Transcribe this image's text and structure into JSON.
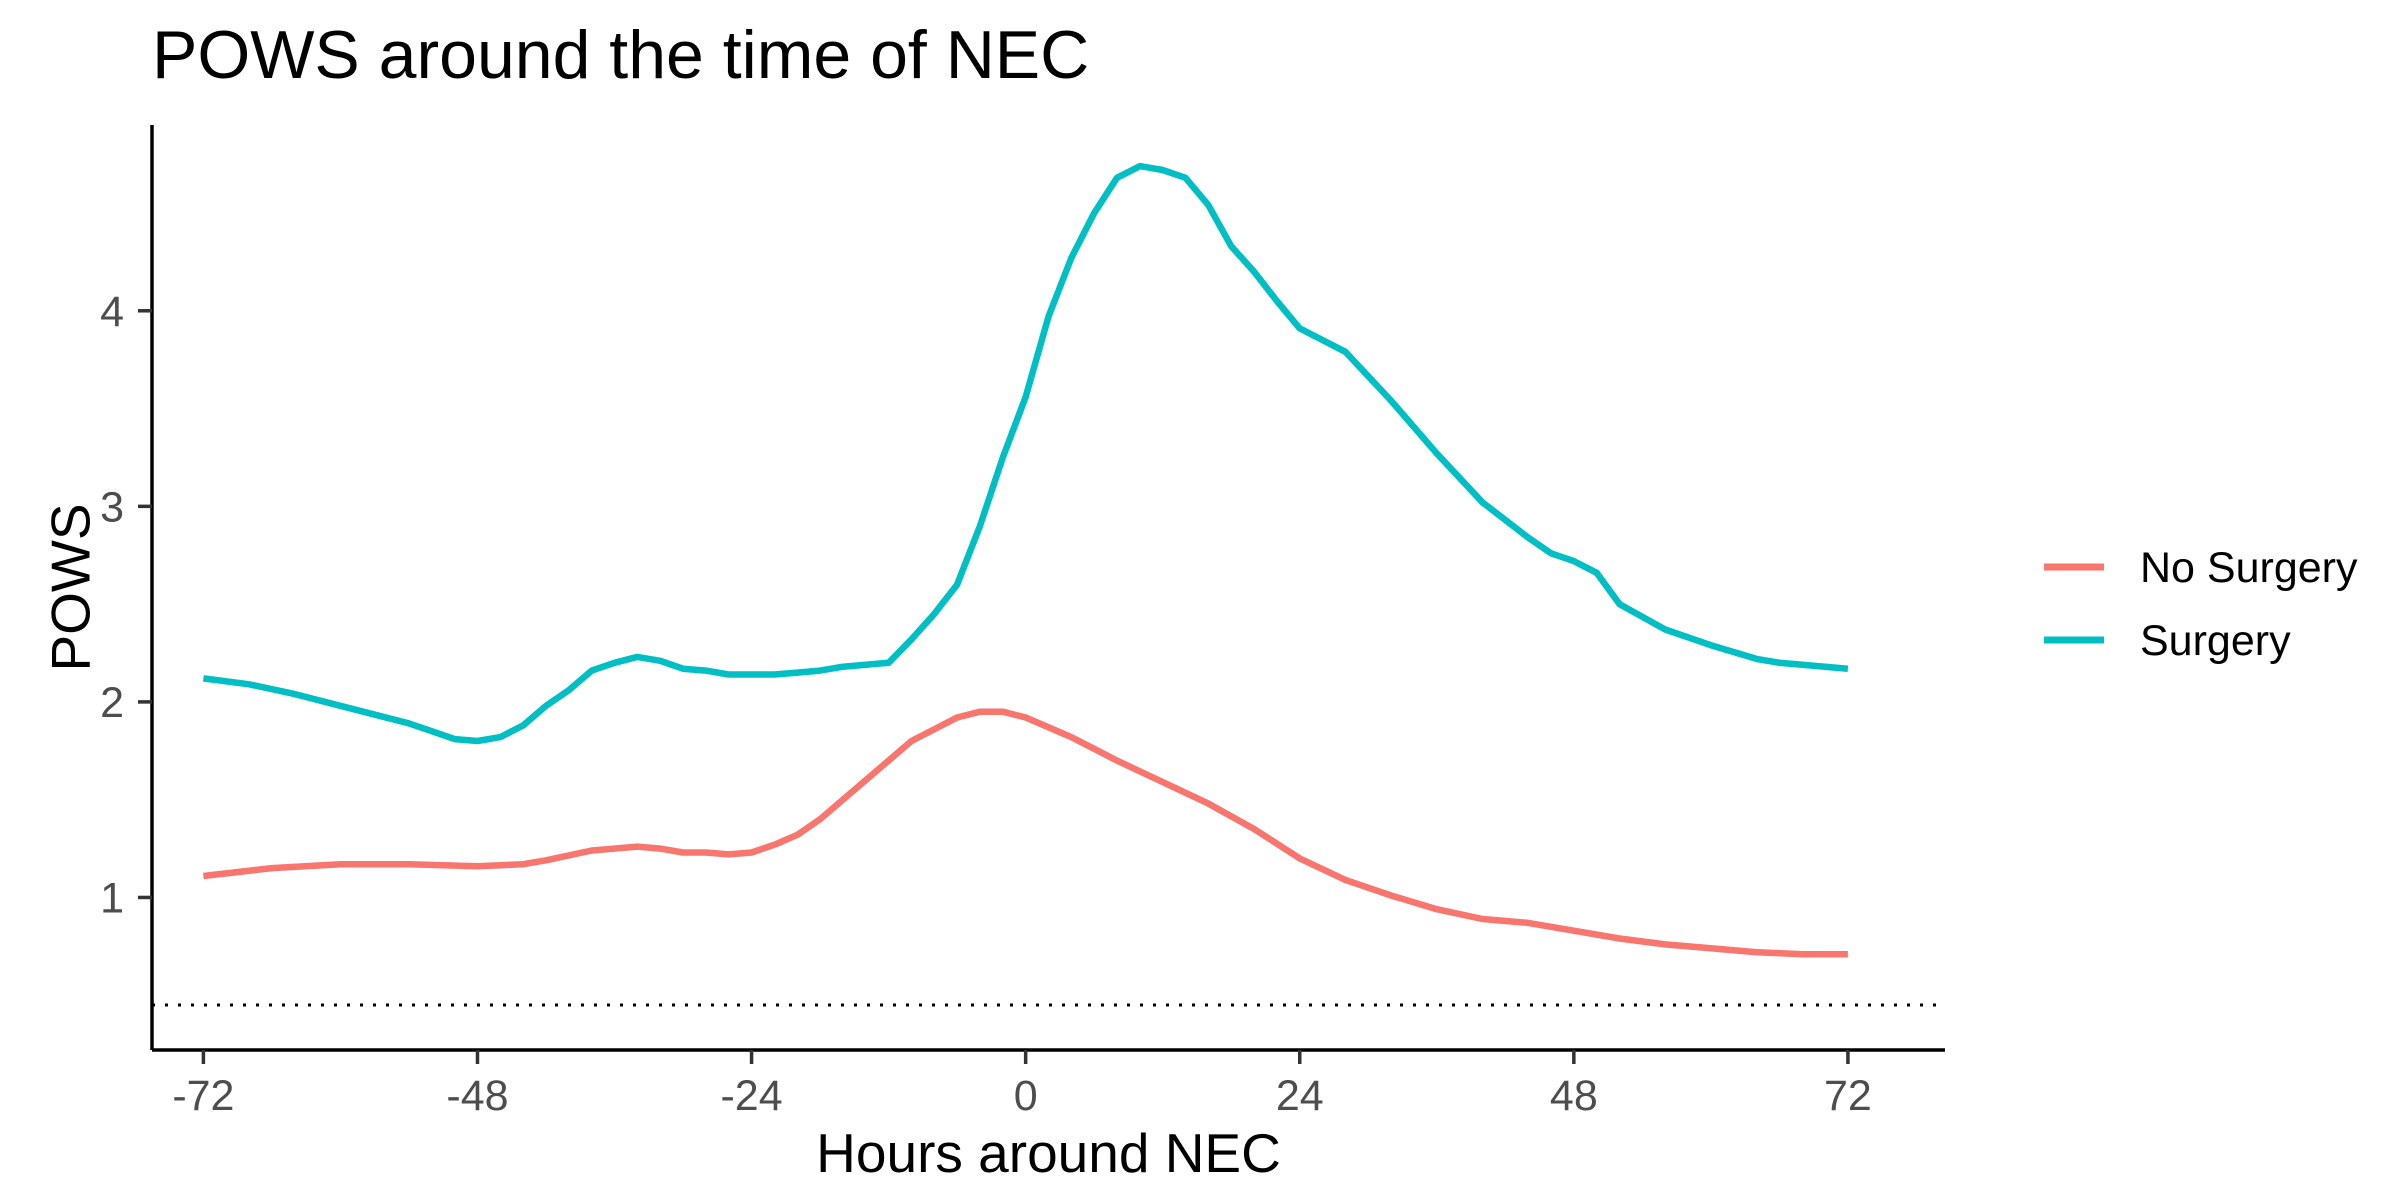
{
  "chart_data": {
    "type": "line",
    "title": "POWS around the time of NEC",
    "xlabel": "Hours around NEC",
    "ylabel": "POWS",
    "xlim": [
      -76.5,
      80.5
    ],
    "ylim": [
      0.22,
      4.95
    ],
    "x_ticks": [
      -72,
      -48,
      -24,
      0,
      24,
      48,
      72
    ],
    "x_tick_labels": [
      "-72",
      "-48",
      "-24",
      "0",
      "24",
      "48",
      "72"
    ],
    "y_ticks": [
      1,
      2,
      3,
      4
    ],
    "y_tick_labels": [
      "1",
      "2",
      "3",
      "4"
    ],
    "grid": false,
    "legend_position": "right",
    "reference_line": {
      "y": 0.45,
      "style": "dotted"
    },
    "series": [
      {
        "name": "No Surgery",
        "color": "#F8766D",
        "x": [
          -72,
          -66,
          -60,
          -54,
          -48,
          -44,
          -42,
          -38,
          -34,
          -32,
          -30,
          -28,
          -26,
          -24,
          -22,
          -20,
          -18,
          -16,
          -12,
          -10,
          -6,
          -4,
          -2,
          0,
          4,
          6,
          8,
          12,
          16,
          20,
          24,
          28,
          32,
          36,
          40,
          44,
          48,
          52,
          56,
          60,
          64,
          68,
          72
        ],
        "y": [
          1.11,
          1.15,
          1.17,
          1.17,
          1.16,
          1.17,
          1.19,
          1.24,
          1.26,
          1.25,
          1.23,
          1.23,
          1.22,
          1.23,
          1.27,
          1.32,
          1.4,
          1.5,
          1.7,
          1.8,
          1.92,
          1.95,
          1.95,
          1.92,
          1.82,
          1.76,
          1.7,
          1.59,
          1.48,
          1.35,
          1.2,
          1.09,
          1.01,
          0.94,
          0.89,
          0.87,
          0.83,
          0.79,
          0.76,
          0.74,
          0.72,
          0.71,
          0.71
        ]
      },
      {
        "name": "Surgery",
        "color": "#00BFC4",
        "x": [
          -72,
          -68,
          -64,
          -58,
          -54,
          -52,
          -50,
          -48,
          -46,
          -44,
          -42,
          -40,
          -38,
          -36,
          -34,
          -32,
          -30,
          -28,
          -26,
          -24,
          -22,
          -20,
          -18,
          -16,
          -12,
          -10,
          -8,
          -6,
          -4,
          -2,
          0,
          2,
          4,
          6,
          8,
          10,
          12,
          14,
          16,
          18,
          20,
          22,
          24,
          26,
          28,
          32,
          36,
          40,
          44,
          46,
          48,
          50,
          52,
          56,
          60,
          64,
          66,
          68,
          70,
          72
        ],
        "y": [
          2.12,
          2.09,
          2.04,
          1.95,
          1.89,
          1.85,
          1.81,
          1.8,
          1.82,
          1.88,
          1.98,
          2.06,
          2.16,
          2.2,
          2.23,
          2.21,
          2.17,
          2.16,
          2.14,
          2.14,
          2.14,
          2.15,
          2.16,
          2.18,
          2.2,
          2.32,
          2.45,
          2.6,
          2.9,
          3.25,
          3.56,
          3.97,
          4.27,
          4.5,
          4.68,
          4.74,
          4.72,
          4.68,
          4.54,
          4.33,
          4.2,
          4.05,
          3.91,
          3.85,
          3.79,
          3.54,
          3.27,
          3.02,
          2.84,
          2.76,
          2.72,
          2.66,
          2.5,
          2.37,
          2.29,
          2.22,
          2.2,
          2.19,
          2.18,
          2.17
        ]
      }
    ]
  }
}
